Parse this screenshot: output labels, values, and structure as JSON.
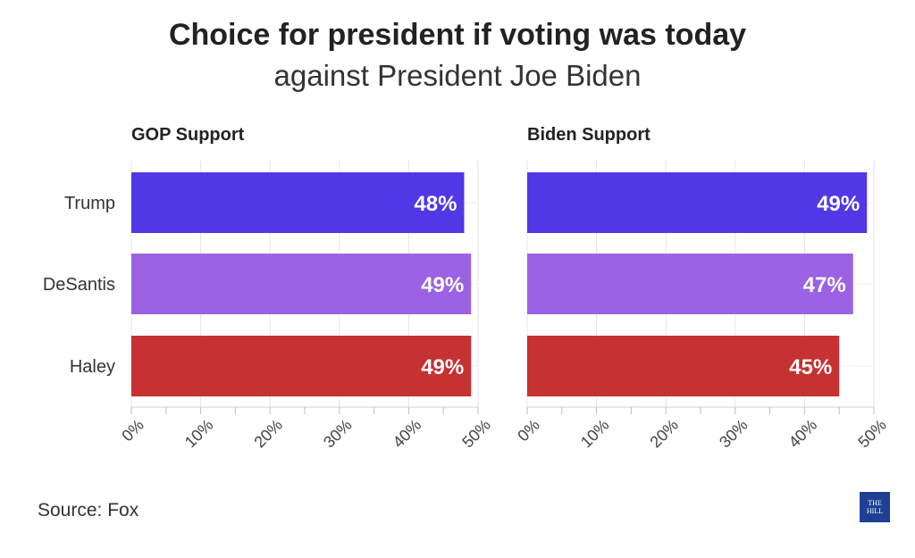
{
  "title": "Choice for president if voting was today",
  "subtitle": "against President Joe Biden",
  "source": "Source: Fox",
  "logo_text": "THE HILL",
  "colors": {
    "Trump": "#5038e6",
    "DeSantis": "#9b63e3",
    "Haley": "#c63132"
  },
  "chart_data": [
    {
      "type": "bar",
      "orientation": "horizontal",
      "title": "GOP Support",
      "categories": [
        "Trump",
        "DeSantis",
        "Haley"
      ],
      "values": [
        48,
        49,
        49
      ],
      "data_labels": [
        "48%",
        "49%",
        "49%"
      ],
      "xlim": [
        0,
        50
      ],
      "ticks": [
        "0%",
        "10%",
        "20%",
        "30%",
        "40%",
        "50%"
      ],
      "grid": true
    },
    {
      "type": "bar",
      "orientation": "horizontal",
      "title": "Biden Support",
      "categories": [
        "Trump",
        "DeSantis",
        "Haley"
      ],
      "values": [
        49,
        47,
        45
      ],
      "data_labels": [
        "49%",
        "47%",
        "45%"
      ],
      "xlim": [
        0,
        50
      ],
      "ticks": [
        "0%",
        "10%",
        "20%",
        "30%",
        "40%",
        "50%"
      ],
      "grid": true
    }
  ]
}
